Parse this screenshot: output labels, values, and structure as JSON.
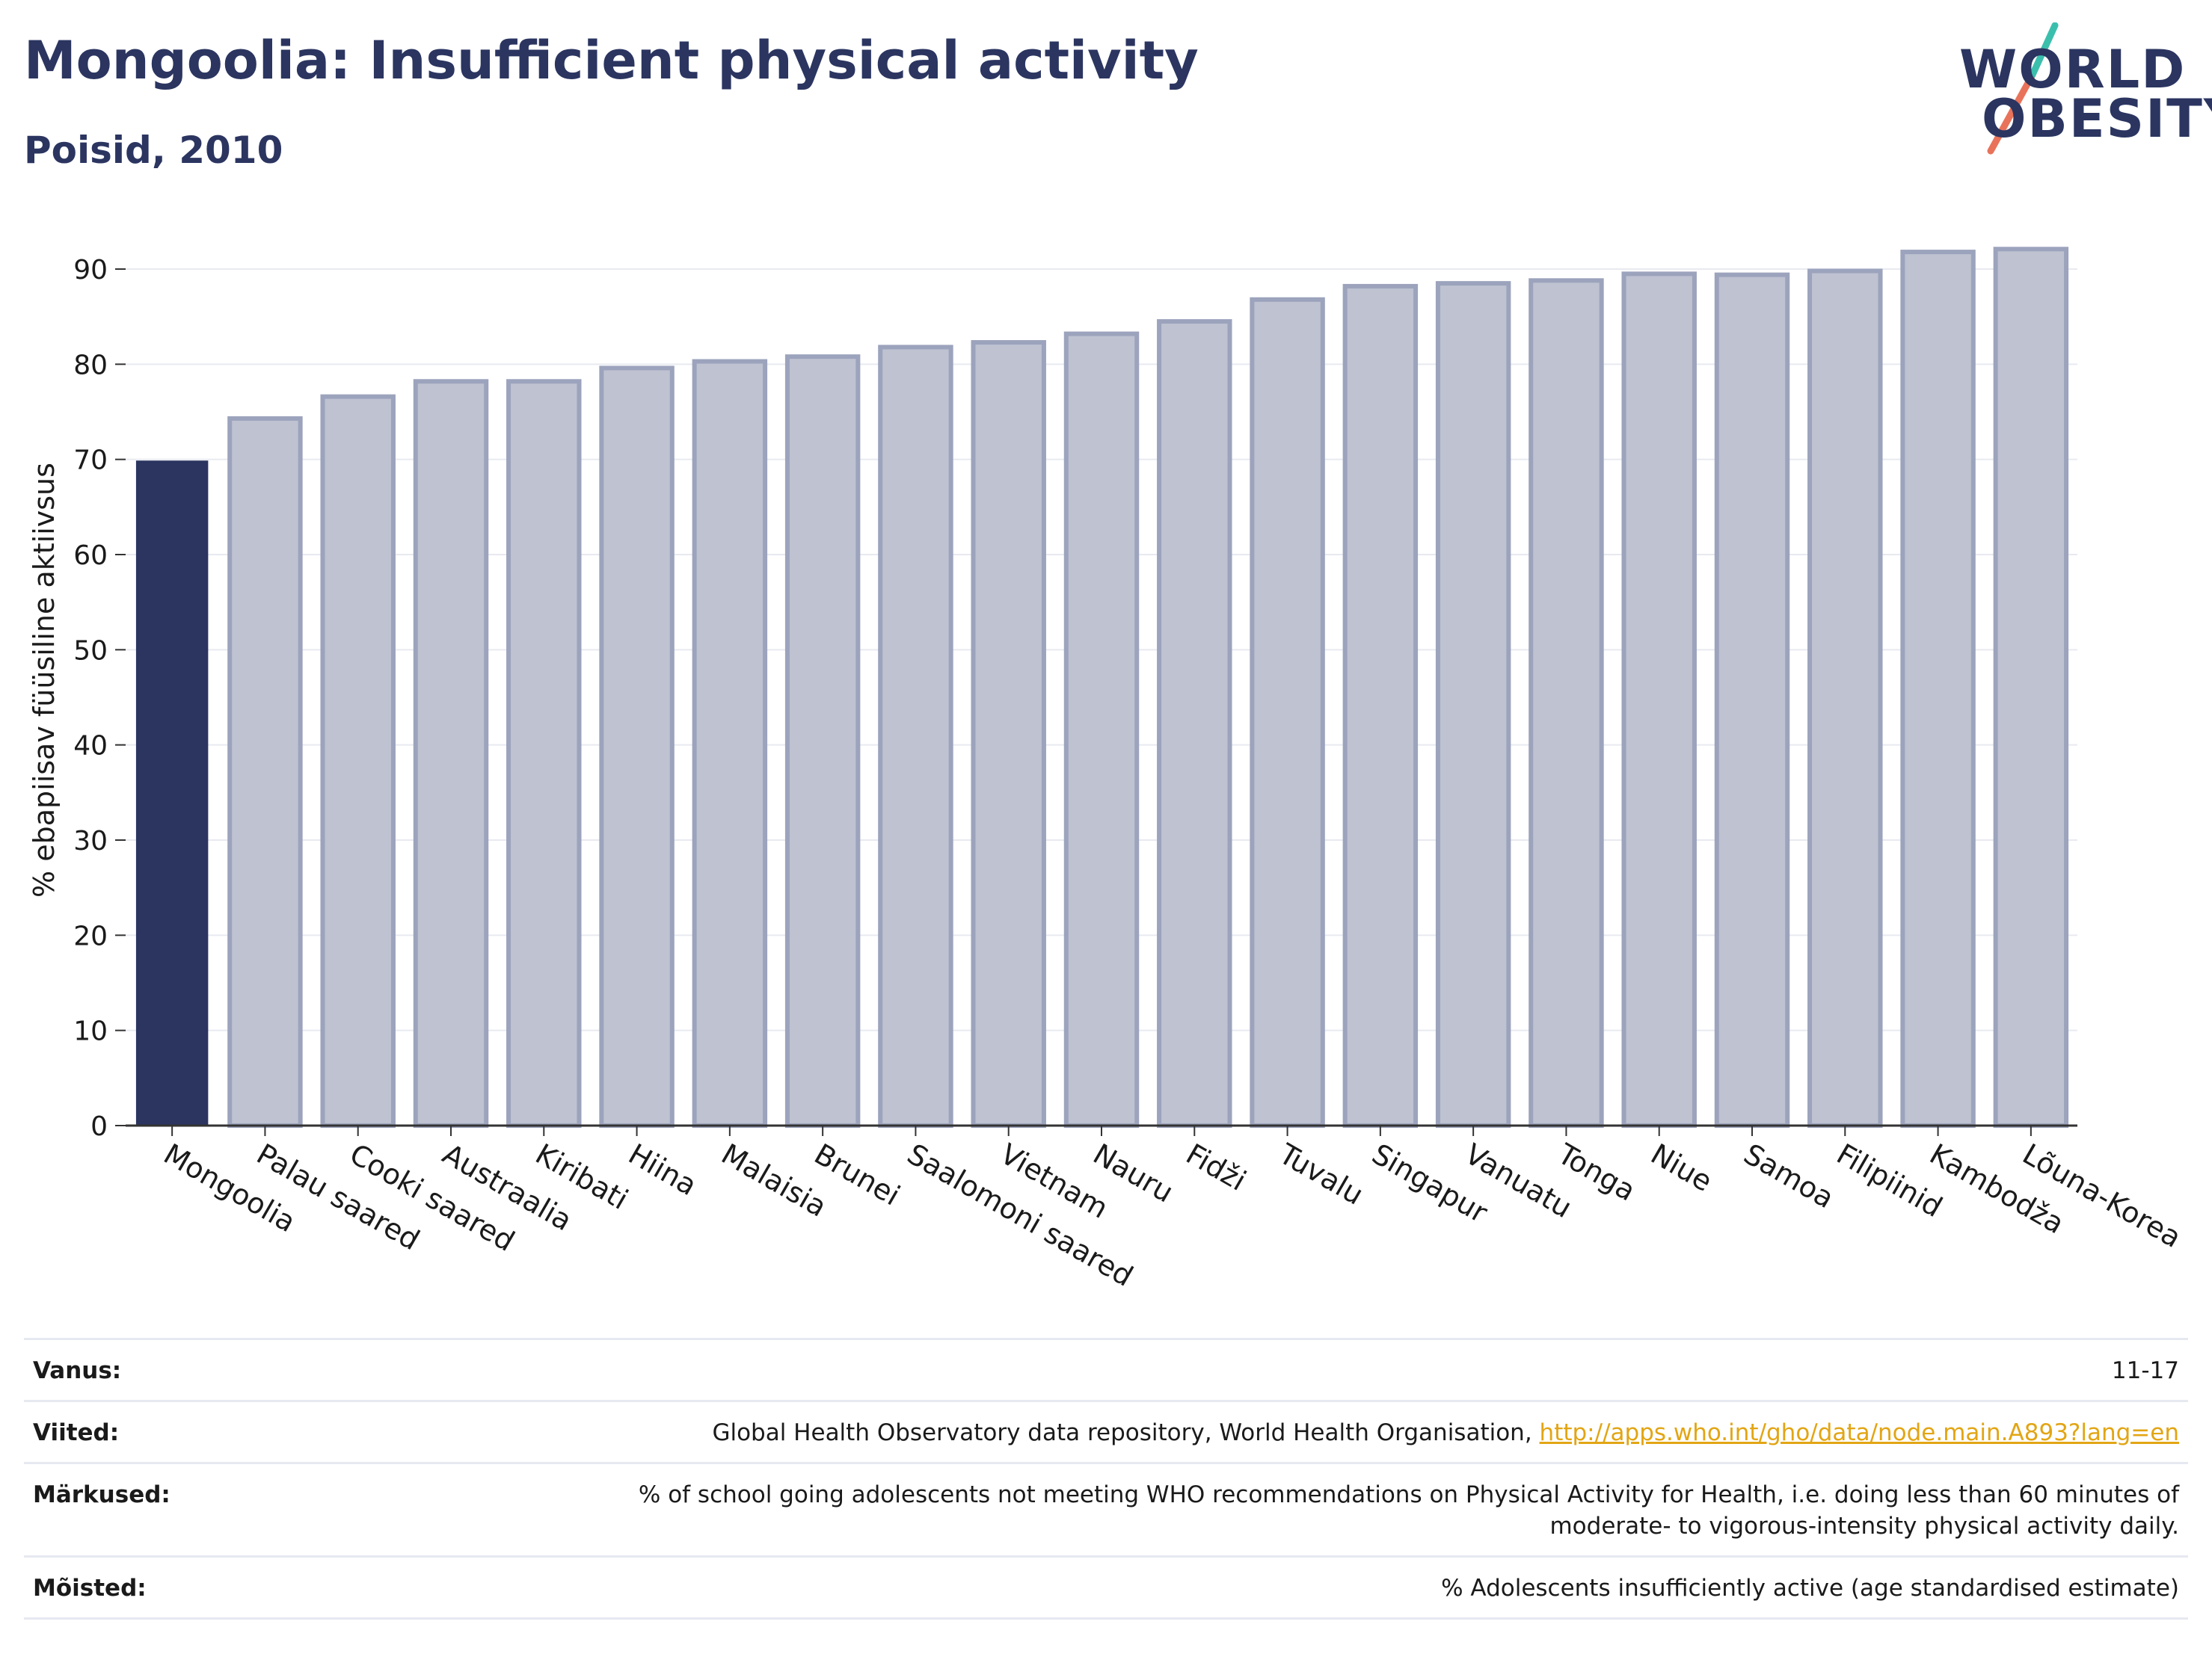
{
  "title": "Mongoolia: Insufficient physical activity",
  "subtitle": "Poisid, 2010",
  "logo": {
    "line1": "WORLD",
    "line2": "OBESITY"
  },
  "colors": {
    "highlight": "#2b3560",
    "bar_fill": "#bec2d1",
    "bar_stroke": "#9ca3bc",
    "grid": "#e8eaf0",
    "axis": "#333333",
    "accent_teal": "#3bbfad",
    "accent_coral": "#e8735a"
  },
  "chart_data": {
    "type": "bar",
    "ylabel": "% ebapiisav füüsiline aktiivsus",
    "ylim": [
      0,
      93
    ],
    "yticks": [
      0,
      10,
      20,
      30,
      40,
      50,
      60,
      70,
      80,
      90
    ],
    "grid": true,
    "highlight_index": 0,
    "categories": [
      "Mongoolia",
      "Palau saared",
      "Cooki saared",
      "Austraalia",
      "Kiribati",
      "Hiina",
      "Malaisia",
      "Brunei",
      "Saalomoni saared",
      "Vietnam",
      "Nauru",
      "Fidži",
      "Tuvalu",
      "Singapur",
      "Vanuatu",
      "Tonga",
      "Niue",
      "Samoa",
      "Filipiinid",
      "Kambodža",
      "Lõuna-Korea"
    ],
    "values": [
      69.8,
      74.3,
      76.6,
      78.2,
      78.2,
      79.6,
      80.3,
      80.8,
      81.8,
      82.3,
      83.2,
      84.5,
      86.8,
      88.2,
      88.5,
      88.8,
      89.5,
      89.4,
      89.8,
      91.8,
      92.1
    ]
  },
  "meta": {
    "age_label": "Vanus:",
    "age_value": "11-17",
    "refs_label": "Viited:",
    "refs_value": "Global Health Observatory data repository, World Health Organisation,",
    "refs_link": "http://apps.who.int/gho/data/node.main.A893?lang=en",
    "notes_label": "Märkused:",
    "notes_value": "% of school going adolescents not meeting WHO recommendations on Physical Activity for Health, i.e. doing less than 60 minutes of moderate- to vigorous-intensity physical activity daily.",
    "defs_label": "Mõisted:",
    "defs_value": "% Adolescents insufficiently active (age standardised estimate)"
  }
}
